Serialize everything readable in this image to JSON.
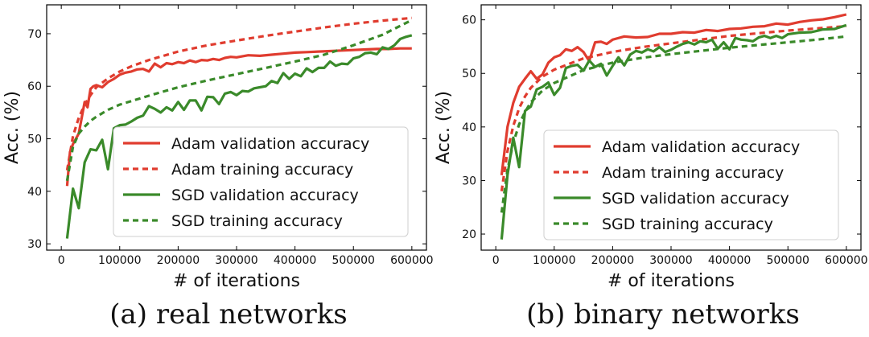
{
  "colors": {
    "adam": "#e03c2f",
    "sgd": "#3a8a2a"
  },
  "chart_data": [
    {
      "type": "line",
      "caption": "(a) real networks",
      "xlabel": "# of iterations",
      "ylabel": "Acc. (%)",
      "xlim": [
        -25000,
        625000
      ],
      "ylim": [
        28.8,
        75.5
      ],
      "xticks": [
        0,
        100000,
        200000,
        300000,
        400000,
        500000,
        600000
      ],
      "yticks": [
        30,
        40,
        50,
        60,
        70
      ],
      "legend_position": "lower-right",
      "grid": false,
      "series": [
        {
          "name": "Adam validation accuracy",
          "color": "adam",
          "style": "solid",
          "x": [
            10000,
            15000,
            20000,
            30000,
            40000,
            45000,
            50000,
            55000,
            60000,
            70000,
            80000,
            90000,
            100000,
            110000,
            120000,
            130000,
            140000,
            150000,
            160000,
            170000,
            180000,
            190000,
            200000,
            210000,
            220000,
            230000,
            240000,
            250000,
            260000,
            270000,
            280000,
            290000,
            300000,
            320000,
            340000,
            360000,
            380000,
            400000,
            420000,
            440000,
            460000,
            480000,
            500000,
            520000,
            540000,
            560000,
            580000,
            600000
          ],
          "y": [
            41,
            47.5,
            49,
            51,
            57,
            56,
            59.5,
            60,
            60.2,
            59.8,
            60.8,
            61.4,
            62.2,
            62.6,
            62.8,
            63.2,
            63.3,
            62.8,
            64.3,
            63.6,
            64.4,
            64.2,
            64.6,
            64.4,
            64.9,
            64.6,
            65,
            64.9,
            65.2,
            65,
            65.4,
            65.6,
            65.5,
            65.9,
            65.8,
            66,
            66.2,
            66.4,
            66.5,
            66.6,
            66.7,
            66.8,
            66.9,
            67,
            67.1,
            67.1,
            67.2,
            67.2
          ]
        },
        {
          "name": "Adam training accuracy",
          "color": "adam",
          "style": "dashed",
          "x": [
            10000,
            20000,
            30000,
            40000,
            50000,
            60000,
            80000,
            100000,
            120000,
            150000,
            200000,
            250000,
            300000,
            350000,
            400000,
            450000,
            500000,
            550000,
            600000
          ],
          "y": [
            44,
            50.5,
            54,
            56.5,
            58.3,
            59.8,
            61.5,
            62.8,
            63.8,
            65,
            66.6,
            67.8,
            68.7,
            69.6,
            70.4,
            71.2,
            71.9,
            72.5,
            73
          ]
        },
        {
          "name": "SGD validation accuracy",
          "color": "sgd",
          "style": "solid",
          "x": [
            10000,
            20000,
            30000,
            40000,
            50000,
            60000,
            70000,
            80000,
            90000,
            100000,
            110000,
            120000,
            130000,
            140000,
            150000,
            160000,
            170000,
            180000,
            190000,
            200000,
            210000,
            220000,
            230000,
            240000,
            250000,
            260000,
            270000,
            280000,
            290000,
            300000,
            310000,
            320000,
            330000,
            340000,
            350000,
            360000,
            370000,
            380000,
            390000,
            400000,
            410000,
            420000,
            430000,
            440000,
            450000,
            460000,
            470000,
            480000,
            490000,
            500000,
            510000,
            520000,
            530000,
            540000,
            550000,
            560000,
            570000,
            580000,
            590000,
            600000
          ],
          "y": [
            31,
            40.5,
            36.8,
            45.5,
            48,
            47.8,
            49.8,
            44.2,
            52,
            52.6,
            52.7,
            53.3,
            54,
            54.4,
            56.2,
            55.7,
            55,
            56,
            55.4,
            57,
            55.5,
            57.3,
            57.3,
            55.4,
            58,
            57.9,
            56.6,
            58.6,
            58.9,
            58.3,
            59.1,
            59,
            59.6,
            59.8,
            60,
            61,
            60.6,
            62.5,
            61.4,
            62.4,
            61.9,
            63.4,
            62.7,
            63.5,
            63.5,
            64.7,
            63.9,
            64.3,
            64.2,
            65.3,
            65.6,
            66.3,
            66.4,
            66.1,
            67.4,
            67.1,
            67.8,
            69,
            69.4,
            69.7
          ]
        },
        {
          "name": "SGD training accuracy",
          "color": "sgd",
          "style": "dashed",
          "x": [
            10000,
            20000,
            30000,
            40000,
            50000,
            60000,
            80000,
            100000,
            150000,
            200000,
            250000,
            300000,
            350000,
            400000,
            450000,
            500000,
            550000,
            600000
          ],
          "y": [
            42,
            48.5,
            51,
            52.3,
            53.4,
            54.2,
            55.5,
            56.5,
            58.2,
            59.8,
            61.1,
            62.3,
            63.5,
            64.7,
            66,
            67.8,
            69.8,
            72.6
          ]
        }
      ]
    },
    {
      "type": "line",
      "caption": "(b) binary networks",
      "xlabel": "# of iterations",
      "ylabel": "Acc. (%)",
      "xlim": [
        -25000,
        625000
      ],
      "ylim": [
        17,
        62.8
      ],
      "xticks": [
        0,
        100000,
        200000,
        300000,
        400000,
        500000,
        600000
      ],
      "yticks": [
        20,
        30,
        40,
        50,
        60
      ],
      "legend_position": "lower-right",
      "grid": false,
      "series": [
        {
          "name": "Adam validation accuracy",
          "color": "adam",
          "style": "solid",
          "x": [
            10000,
            20000,
            30000,
            40000,
            50000,
            60000,
            70000,
            80000,
            90000,
            100000,
            110000,
            120000,
            130000,
            140000,
            150000,
            160000,
            170000,
            180000,
            190000,
            200000,
            220000,
            240000,
            260000,
            280000,
            300000,
            320000,
            340000,
            360000,
            380000,
            400000,
            420000,
            440000,
            460000,
            480000,
            500000,
            520000,
            540000,
            560000,
            580000,
            600000
          ],
          "y": [
            31,
            40,
            44.5,
            47.5,
            49,
            50.4,
            49,
            49.8,
            52,
            53,
            53.4,
            54.5,
            54.2,
            54.9,
            54,
            52.3,
            55.8,
            55.9,
            55.5,
            56.3,
            56.9,
            56.7,
            56.8,
            57.4,
            57.4,
            57.7,
            57.6,
            58.1,
            57.9,
            58.3,
            58.4,
            58.7,
            58.8,
            59.3,
            59.1,
            59.6,
            59.9,
            60.1,
            60.5,
            61
          ]
        },
        {
          "name": "Adam training accuracy",
          "color": "adam",
          "style": "dashed",
          "x": [
            10000,
            20000,
            30000,
            40000,
            50000,
            60000,
            80000,
            100000,
            150000,
            200000,
            250000,
            300000,
            350000,
            400000,
            450000,
            500000,
            550000,
            600000
          ],
          "y": [
            28,
            35.5,
            40.2,
            43.5,
            45.7,
            47.3,
            49.4,
            50.7,
            52.8,
            54,
            54.9,
            55.6,
            56.3,
            57,
            57.5,
            58,
            58.4,
            58.8
          ]
        },
        {
          "name": "SGD validation accuracy",
          "color": "sgd",
          "style": "solid",
          "x": [
            10000,
            20000,
            30000,
            40000,
            50000,
            60000,
            70000,
            80000,
            90000,
            100000,
            110000,
            120000,
            130000,
            140000,
            150000,
            160000,
            170000,
            180000,
            190000,
            200000,
            210000,
            220000,
            230000,
            240000,
            250000,
            260000,
            270000,
            280000,
            290000,
            300000,
            310000,
            320000,
            330000,
            340000,
            350000,
            360000,
            370000,
            380000,
            390000,
            400000,
            410000,
            420000,
            430000,
            440000,
            450000,
            460000,
            470000,
            480000,
            490000,
            500000,
            520000,
            540000,
            560000,
            580000,
            600000
          ],
          "y": [
            19,
            31,
            38,
            32.5,
            43,
            43.8,
            47,
            47.5,
            48.3,
            46,
            47.3,
            51,
            51.4,
            51.6,
            50.5,
            52.4,
            51.2,
            51.8,
            49.6,
            51.4,
            53,
            51.5,
            53.5,
            54.2,
            53.9,
            54.5,
            54.1,
            54.9,
            54,
            54.4,
            55,
            55.5,
            55.8,
            55.4,
            56,
            55.8,
            56.3,
            54.6,
            55.8,
            54.5,
            56.6,
            56.3,
            56.2,
            56,
            56.7,
            57,
            56.6,
            57,
            56.6,
            57.3,
            57.6,
            57.7,
            58.2,
            58.3,
            59
          ]
        },
        {
          "name": "SGD training accuracy",
          "color": "sgd",
          "style": "dashed",
          "x": [
            10000,
            20000,
            30000,
            40000,
            50000,
            60000,
            80000,
            100000,
            150000,
            200000,
            250000,
            300000,
            350000,
            400000,
            450000,
            500000,
            550000,
            600000
          ],
          "y": [
            24,
            32,
            37,
            40.5,
            42.8,
            44.6,
            46.8,
            48.2,
            50.6,
            52,
            52.9,
            53.6,
            54.2,
            54.8,
            55.3,
            55.8,
            56.3,
            56.9
          ]
        }
      ]
    }
  ]
}
